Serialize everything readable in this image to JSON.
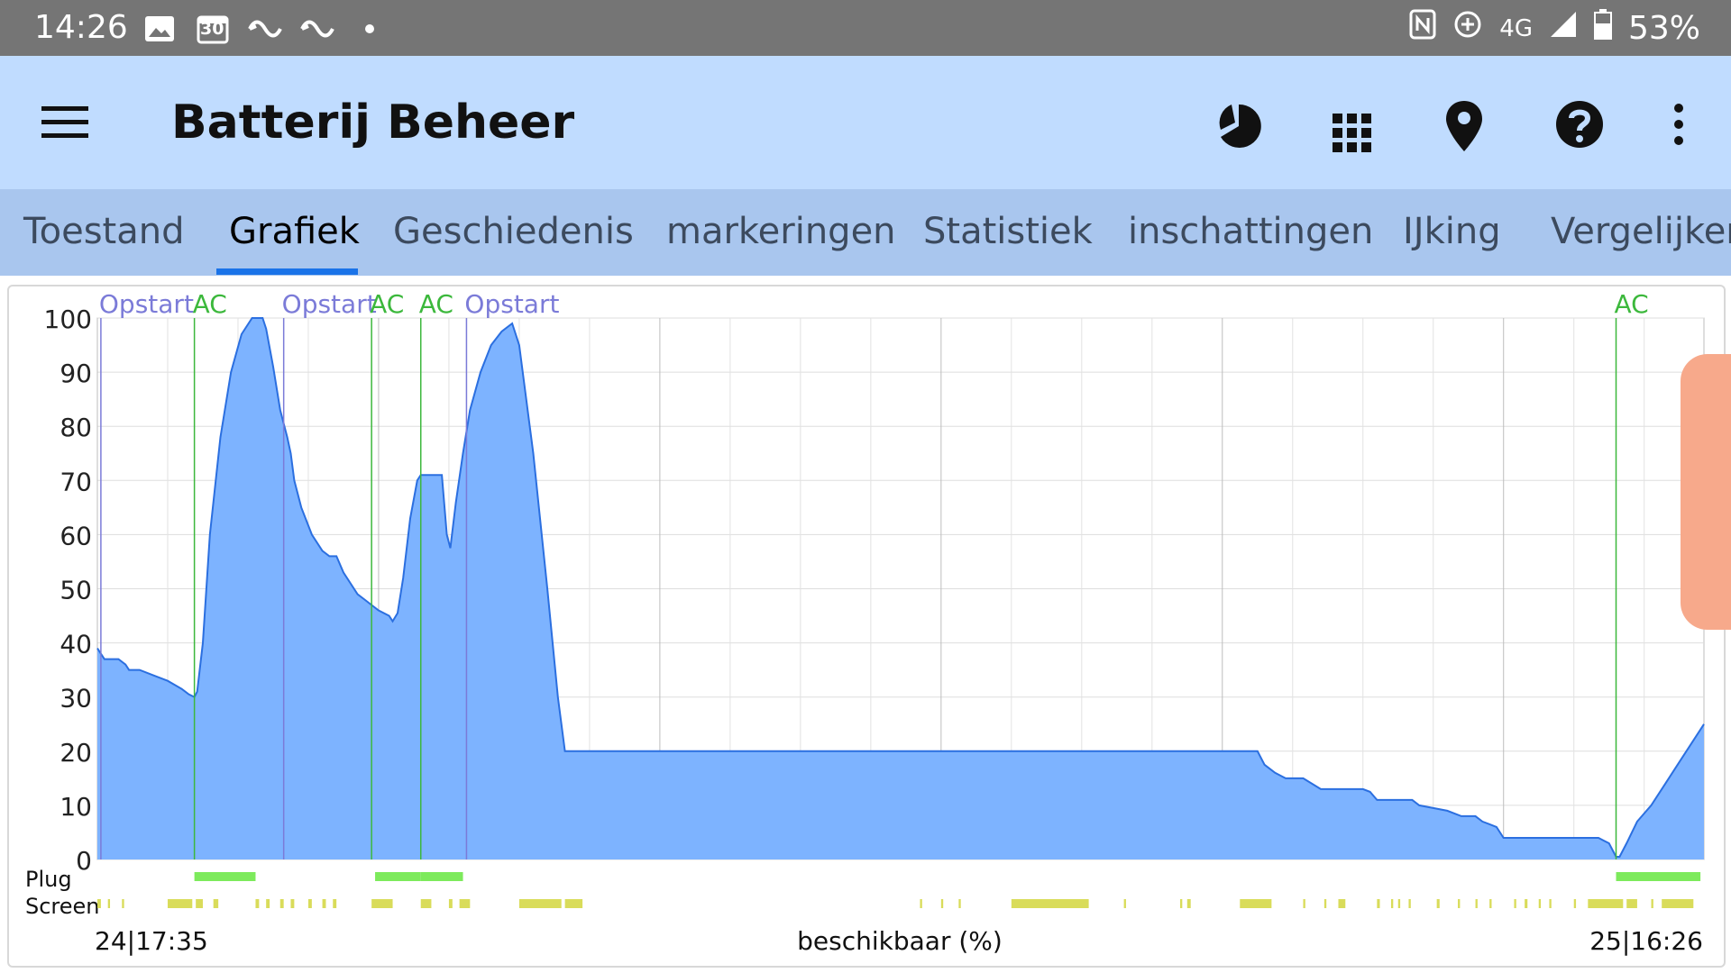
{
  "status_bar": {
    "time": "14:26",
    "calendar_day": "30",
    "network": "4G",
    "battery": "53%"
  },
  "app_bar": {
    "title": "Batterij Beheer",
    "icons": [
      "menu-icon",
      "pie-chart-icon",
      "apps-grid-icon",
      "location-pin-icon",
      "help-icon",
      "more-vert-icon"
    ]
  },
  "tabs": [
    {
      "label": "Toestand"
    },
    {
      "label": "Grafiek"
    },
    {
      "label": "Geschiedenis"
    },
    {
      "label": "markeringen"
    },
    {
      "label": "Statistiek"
    },
    {
      "label": "inschattingen"
    },
    {
      "label": "IJking"
    },
    {
      "label": "Vergelijken"
    }
  ],
  "active_tab": "Grafiek",
  "colors": {
    "appbar": "#c0dcff",
    "tabbar": "#a9c6ee",
    "accent": "#1a73e8",
    "area_fill": "#7db3ff",
    "area_line": "#2b6fe0",
    "ac_marker": "#3cb83c",
    "boot_marker": "#7b7bd8",
    "plug_bar": "#7dea5c",
    "screen_bar": "#d9dc5a"
  },
  "chart_data": {
    "type": "area",
    "ylabel": "beschikbaar (%)",
    "ylim": [
      0,
      100
    ],
    "yticks": [
      0,
      10,
      20,
      30,
      40,
      50,
      60,
      70,
      80,
      90,
      100
    ],
    "x_start_label": "24|17:35",
    "x_end_label": "25|16:26",
    "x_unit": "hours since start",
    "xlim": [
      0,
      22.85
    ],
    "series": [
      {
        "points": [
          [
            0.0,
            39
          ],
          [
            0.05,
            38
          ],
          [
            0.1,
            37
          ],
          [
            0.3,
            37
          ],
          [
            0.4,
            36
          ],
          [
            0.45,
            35
          ],
          [
            0.6,
            35
          ],
          [
            0.8,
            34
          ],
          [
            1.0,
            33
          ],
          [
            1.2,
            31.5
          ],
          [
            1.3,
            30.5
          ],
          [
            1.38,
            30
          ],
          [
            1.42,
            31
          ],
          [
            1.5,
            40
          ],
          [
            1.6,
            60
          ],
          [
            1.75,
            78
          ],
          [
            1.9,
            90
          ],
          [
            2.05,
            97
          ],
          [
            2.2,
            100
          ],
          [
            2.25,
            100
          ],
          [
            2.3,
            100
          ],
          [
            2.35,
            100
          ],
          [
            2.4,
            98
          ],
          [
            2.5,
            91
          ],
          [
            2.6,
            83
          ],
          [
            2.7,
            78
          ],
          [
            2.75,
            75
          ],
          [
            2.8,
            70
          ],
          [
            2.9,
            65
          ],
          [
            3.05,
            60
          ],
          [
            3.2,
            57
          ],
          [
            3.3,
            56
          ],
          [
            3.4,
            56
          ],
          [
            3.5,
            53
          ],
          [
            3.6,
            51
          ],
          [
            3.7,
            49
          ],
          [
            3.8,
            48
          ],
          [
            3.9,
            47
          ],
          [
            4.0,
            46
          ],
          [
            4.15,
            45
          ],
          [
            4.2,
            44
          ],
          [
            4.27,
            45.5
          ],
          [
            4.35,
            52
          ],
          [
            4.45,
            63
          ],
          [
            4.55,
            70
          ],
          [
            4.6,
            71
          ],
          [
            4.7,
            71
          ],
          [
            4.8,
            71
          ],
          [
            4.9,
            71
          ],
          [
            4.97,
            60
          ],
          [
            5.02,
            57.5
          ],
          [
            5.1,
            66
          ],
          [
            5.2,
            75
          ],
          [
            5.3,
            83
          ],
          [
            5.45,
            90
          ],
          [
            5.6,
            95
          ],
          [
            5.75,
            97.5
          ],
          [
            5.9,
            99
          ],
          [
            6.0,
            95
          ],
          [
            6.2,
            75
          ],
          [
            6.4,
            50
          ],
          [
            6.55,
            30
          ],
          [
            6.65,
            20
          ],
          [
            7.0,
            20
          ],
          [
            16.5,
            20
          ],
          [
            16.6,
            17.5
          ],
          [
            16.75,
            16
          ],
          [
            16.9,
            15
          ],
          [
            17.15,
            15
          ],
          [
            17.4,
            13
          ],
          [
            18.0,
            13
          ],
          [
            18.1,
            12.5
          ],
          [
            18.2,
            11
          ],
          [
            18.7,
            11
          ],
          [
            18.8,
            10
          ],
          [
            19.2,
            9
          ],
          [
            19.4,
            8
          ],
          [
            19.6,
            8
          ],
          [
            19.7,
            7
          ],
          [
            19.9,
            6
          ],
          [
            20.0,
            4
          ],
          [
            20.05,
            4
          ],
          [
            21.35,
            4
          ],
          [
            21.5,
            3
          ],
          [
            21.6,
            0.5
          ],
          [
            21.65,
            0.5
          ],
          [
            21.75,
            3
          ],
          [
            21.9,
            7
          ],
          [
            22.1,
            10
          ],
          [
            22.3,
            14
          ],
          [
            22.5,
            18
          ],
          [
            22.7,
            22
          ],
          [
            22.85,
            25
          ]
        ]
      }
    ],
    "markers": [
      {
        "x": 0.05,
        "label": "Opstart",
        "kind": "boot"
      },
      {
        "x": 1.38,
        "label": "AC",
        "kind": "ac"
      },
      {
        "x": 2.65,
        "label": "Opstart",
        "kind": "boot"
      },
      {
        "x": 3.9,
        "label": "AC",
        "kind": "ac"
      },
      {
        "x": 4.6,
        "label": "AC",
        "kind": "ac"
      },
      {
        "x": 5.25,
        "label": "Opstart",
        "kind": "boot"
      },
      {
        "x": 21.6,
        "label": "AC",
        "kind": "ac"
      }
    ],
    "plug_row_label": "Plug",
    "screen_row_label": "Screen",
    "plug_intervals": [
      [
        1.38,
        2.25
      ],
      [
        3.95,
        4.6
      ],
      [
        4.6,
        5.2
      ],
      [
        21.6,
        22.8
      ]
    ],
    "screen_intervals": [
      [
        0.0,
        0.05
      ],
      [
        0.15,
        0.18
      ],
      [
        0.35,
        0.38
      ],
      [
        1.0,
        1.35
      ],
      [
        1.4,
        1.5
      ],
      [
        1.65,
        1.72
      ],
      [
        2.25,
        2.3
      ],
      [
        2.4,
        2.45
      ],
      [
        2.6,
        2.65
      ],
      [
        2.75,
        2.8
      ],
      [
        3.0,
        3.05
      ],
      [
        3.2,
        3.25
      ],
      [
        3.35,
        3.4
      ],
      [
        3.9,
        4.2
      ],
      [
        4.6,
        4.75
      ],
      [
        5.0,
        5.05
      ],
      [
        5.15,
        5.3
      ],
      [
        6.0,
        6.6
      ],
      [
        6.65,
        6.9
      ],
      [
        11.7,
        11.73
      ],
      [
        12.0,
        12.03
      ],
      [
        12.25,
        12.28
      ],
      [
        13.0,
        14.1
      ],
      [
        14.6,
        14.63
      ],
      [
        15.4,
        15.43
      ],
      [
        15.5,
        15.55
      ],
      [
        16.25,
        16.7
      ],
      [
        17.15,
        17.18
      ],
      [
        17.45,
        17.48
      ],
      [
        17.65,
        17.75
      ],
      [
        18.2,
        18.24
      ],
      [
        18.4,
        18.43
      ],
      [
        18.5,
        18.53
      ],
      [
        18.65,
        18.68
      ],
      [
        19.05,
        19.09
      ],
      [
        19.35,
        19.38
      ],
      [
        19.6,
        19.63
      ],
      [
        19.8,
        19.83
      ],
      [
        20.15,
        20.18
      ],
      [
        20.3,
        20.34
      ],
      [
        20.5,
        20.53
      ],
      [
        20.65,
        20.68
      ],
      [
        21.0,
        21.03
      ],
      [
        21.2,
        21.7
      ],
      [
        21.75,
        21.9
      ],
      [
        22.1,
        22.13
      ],
      [
        22.25,
        22.7
      ]
    ]
  }
}
